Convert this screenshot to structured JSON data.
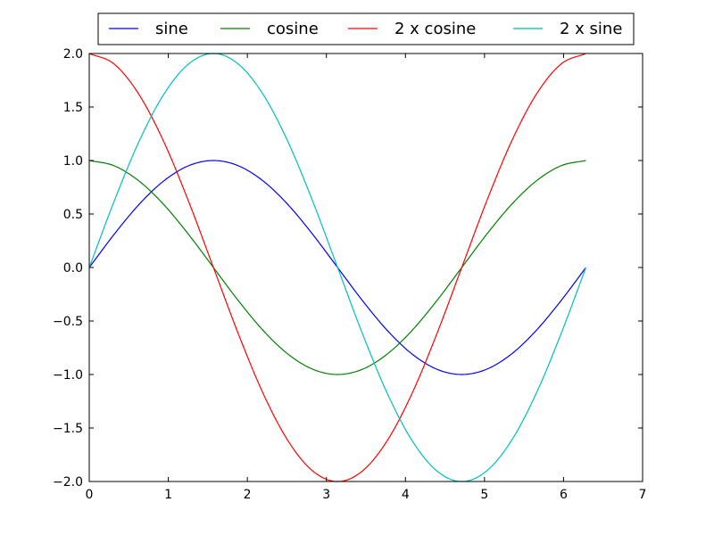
{
  "chart_data": {
    "type": "line",
    "title": "",
    "xlabel": "",
    "ylabel": "",
    "xlim": [
      0,
      7
    ],
    "ylim": [
      -2.0,
      2.0
    ],
    "x_ticks": [
      0,
      1,
      2,
      3,
      4,
      5,
      6,
      7
    ],
    "x_tick_labels": [
      "0",
      "1",
      "2",
      "3",
      "4",
      "5",
      "6",
      "7"
    ],
    "y_ticks": [
      -2.0,
      -1.5,
      -1.0,
      -0.5,
      0.0,
      0.5,
      1.0,
      1.5,
      2.0
    ],
    "y_tick_labels": [
      "−2.0",
      "−1.5",
      "−1.0",
      "−0.5",
      "0.0",
      "0.5",
      "1.0",
      "1.5",
      "2.0"
    ],
    "grid": false,
    "legend": {
      "placement": "top-center, above plot",
      "columns": 4
    },
    "series": [
      {
        "name": "sine",
        "color": "#0000ff",
        "x": [
          0,
          0.3142,
          0.6283,
          0.9425,
          1.2566,
          1.5708,
          1.885,
          2.1991,
          2.5133,
          2.8274,
          3.1416,
          3.4558,
          3.7699,
          4.0841,
          4.3982,
          4.7124,
          5.0265,
          5.3407,
          5.6549,
          5.969,
          6.2832
        ],
        "y": [
          0,
          0.309,
          0.588,
          0.809,
          0.951,
          1,
          0.951,
          0.809,
          0.588,
          0.309,
          0,
          -0.309,
          -0.588,
          -0.809,
          -0.951,
          -1,
          -0.951,
          -0.809,
          -0.588,
          -0.309,
          0
        ]
      },
      {
        "name": "cosine",
        "color": "#008000",
        "x": [
          0,
          0.3142,
          0.6283,
          0.9425,
          1.2566,
          1.5708,
          1.885,
          2.1991,
          2.5133,
          2.8274,
          3.1416,
          3.4558,
          3.7699,
          4.0841,
          4.3982,
          4.7124,
          5.0265,
          5.3407,
          5.6549,
          5.969,
          6.2832
        ],
        "y": [
          1,
          0.951,
          0.809,
          0.588,
          0.309,
          0,
          -0.309,
          -0.588,
          -0.809,
          -0.951,
          -1,
          -0.951,
          -0.809,
          -0.588,
          -0.309,
          0,
          0.309,
          0.588,
          0.809,
          0.951,
          1
        ]
      },
      {
        "name": "2 x cosine",
        "color": "#ff0000",
        "x": [
          0,
          0.3142,
          0.6283,
          0.9425,
          1.2566,
          1.5708,
          1.885,
          2.1991,
          2.5133,
          2.8274,
          3.1416,
          3.4558,
          3.7699,
          4.0841,
          4.3982,
          4.7124,
          5.0265,
          5.3407,
          5.6549,
          5.969,
          6.2832
        ],
        "y": [
          2,
          1.902,
          1.618,
          1.176,
          0.618,
          0,
          -0.618,
          -1.176,
          -1.618,
          -1.902,
          -2,
          -1.902,
          -1.618,
          -1.176,
          -0.618,
          0,
          0.618,
          1.176,
          1.618,
          1.902,
          2
        ]
      },
      {
        "name": "2 x sine",
        "color": "#00bfbf",
        "x": [
          0,
          0.3142,
          0.6283,
          0.9425,
          1.2566,
          1.5708,
          1.885,
          2.1991,
          2.5133,
          2.8274,
          3.1416,
          3.4558,
          3.7699,
          4.0841,
          4.3982,
          4.7124,
          5.0265,
          5.3407,
          5.6549,
          5.969,
          6.2832
        ],
        "y": [
          0,
          0.618,
          1.176,
          1.618,
          1.902,
          2,
          1.902,
          1.618,
          1.176,
          0.618,
          0,
          -0.618,
          -1.176,
          -1.618,
          -1.902,
          -2,
          -1.902,
          -1.618,
          -1.176,
          -0.618,
          0
        ]
      }
    ]
  }
}
